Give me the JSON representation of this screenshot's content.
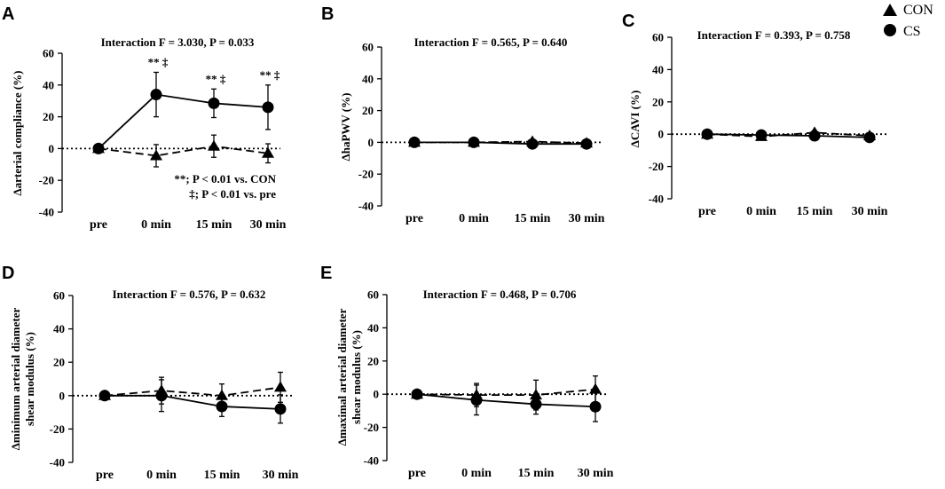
{
  "legend": {
    "con_label": "CON",
    "cs_label": "CS",
    "con_marker": "triangle",
    "cs_marker": "circle"
  },
  "colors": {
    "ink": "#000000",
    "background": "#ffffff"
  },
  "chart_data": [
    {
      "id": "A",
      "type": "line",
      "letter": "A",
      "title": "Interaction F = 3.030, P = 0.033",
      "xlabel": "",
      "ylabel": "Δarterial compliance (%)",
      "categories": [
        "pre",
        "0 min",
        "15 min",
        "30 min"
      ],
      "ylim": [
        -40,
        60
      ],
      "yticks": [
        -40,
        -20,
        0,
        20,
        40,
        60
      ],
      "series": [
        {
          "name": "CS",
          "marker": "circle",
          "line": "solid",
          "values": [
            0,
            34,
            28.5,
            26
          ],
          "errors": [
            0,
            14,
            9,
            14
          ]
        },
        {
          "name": "CON",
          "marker": "triangle",
          "line": "dashed",
          "values": [
            0,
            -4.5,
            1.5,
            -3
          ],
          "errors": [
            0,
            7,
            7,
            6
          ]
        }
      ],
      "significance": [
        {
          "index": 1,
          "text": "**  ‡"
        },
        {
          "index": 2,
          "text": "**  ‡"
        },
        {
          "index": 3,
          "text": "**  ‡"
        }
      ],
      "notes": [
        "**; P < 0.01 vs. CON",
        "‡; P < 0.01 vs. pre"
      ]
    },
    {
      "id": "B",
      "type": "line",
      "letter": "B",
      "title": "Interaction F = 0.565, P = 0.640",
      "xlabel": "",
      "ylabel": "ΔhaPWV (%)",
      "categories": [
        "pre",
        "0 min",
        "15 min",
        "30 min"
      ],
      "ylim": [
        -40,
        60
      ],
      "yticks": [
        -40,
        -20,
        0,
        20,
        40,
        60
      ],
      "series": [
        {
          "name": "CS",
          "marker": "circle",
          "line": "solid",
          "values": [
            0,
            0,
            -1,
            -1
          ],
          "errors": [
            0,
            1,
            1,
            1
          ]
        },
        {
          "name": "CON",
          "marker": "triangle",
          "line": "dashed",
          "values": [
            0,
            0,
            0.5,
            -0.5
          ],
          "errors": [
            0,
            1,
            1,
            1
          ]
        }
      ],
      "significance": [],
      "notes": []
    },
    {
      "id": "C",
      "type": "line",
      "letter": "C",
      "title": "Interaction F = 0.393, P = 0.758",
      "xlabel": "",
      "ylabel": "ΔCAVI (%)",
      "categories": [
        "pre",
        "0 min",
        "15 min",
        "30 min"
      ],
      "ylim": [
        -40,
        60
      ],
      "yticks": [
        -40,
        -20,
        0,
        20,
        40,
        60
      ],
      "series": [
        {
          "name": "CS",
          "marker": "circle",
          "line": "solid",
          "values": [
            0,
            -0.5,
            -1,
            -2
          ],
          "errors": [
            0,
            1,
            1,
            1
          ]
        },
        {
          "name": "CON",
          "marker": "triangle",
          "line": "dashed",
          "values": [
            0,
            -1.5,
            1,
            -1
          ],
          "errors": [
            0,
            1,
            1,
            1
          ]
        }
      ],
      "significance": [],
      "notes": []
    },
    {
      "id": "D",
      "type": "line",
      "letter": "D",
      "title": "Interaction F = 0.576, P = 0.632",
      "xlabel": "",
      "ylabel": "Δminimum arterial diameter shear modulus (%)",
      "ylabel_lines": [
        "Δminimum arterial diameter",
        "shear modulus (%)"
      ],
      "categories": [
        "pre",
        "0 min",
        "15 min",
        "30 min"
      ],
      "ylim": [
        -40,
        60
      ],
      "yticks": [
        -40,
        -20,
        0,
        20,
        40,
        60
      ],
      "series": [
        {
          "name": "CS",
          "marker": "circle",
          "line": "solid",
          "values": [
            0,
            0,
            -6.5,
            -8
          ],
          "errors": [
            0,
            9.5,
            6,
            8.5
          ]
        },
        {
          "name": "CON",
          "marker": "triangle",
          "line": "dashed",
          "values": [
            0,
            3,
            0,
            5
          ],
          "errors": [
            0,
            8,
            7,
            9
          ]
        }
      ],
      "significance": [],
      "notes": []
    },
    {
      "id": "E",
      "type": "line",
      "letter": "E",
      "title": "Interaction F = 0.468, P = 0.706",
      "xlabel": "",
      "ylabel": "Δmaximal arterial diameter shear modulus (%)",
      "ylabel_lines": [
        "Δmaximal arterial diameter",
        "shear modulus (%)"
      ],
      "categories": [
        "pre",
        "0 min",
        "15 min",
        "30 min"
      ],
      "ylim": [
        -40,
        60
      ],
      "yticks": [
        -40,
        -20,
        0,
        20,
        40,
        60
      ],
      "series": [
        {
          "name": "CS",
          "marker": "circle",
          "line": "solid",
          "values": [
            0,
            -3.5,
            -6,
            -7.5
          ],
          "errors": [
            0,
            9,
            6,
            9
          ]
        },
        {
          "name": "CON",
          "marker": "triangle",
          "line": "dashed",
          "values": [
            0,
            -0.5,
            -0.5,
            3
          ],
          "errors": [
            0,
            7,
            9,
            8
          ]
        }
      ],
      "significance": [],
      "notes": []
    }
  ]
}
